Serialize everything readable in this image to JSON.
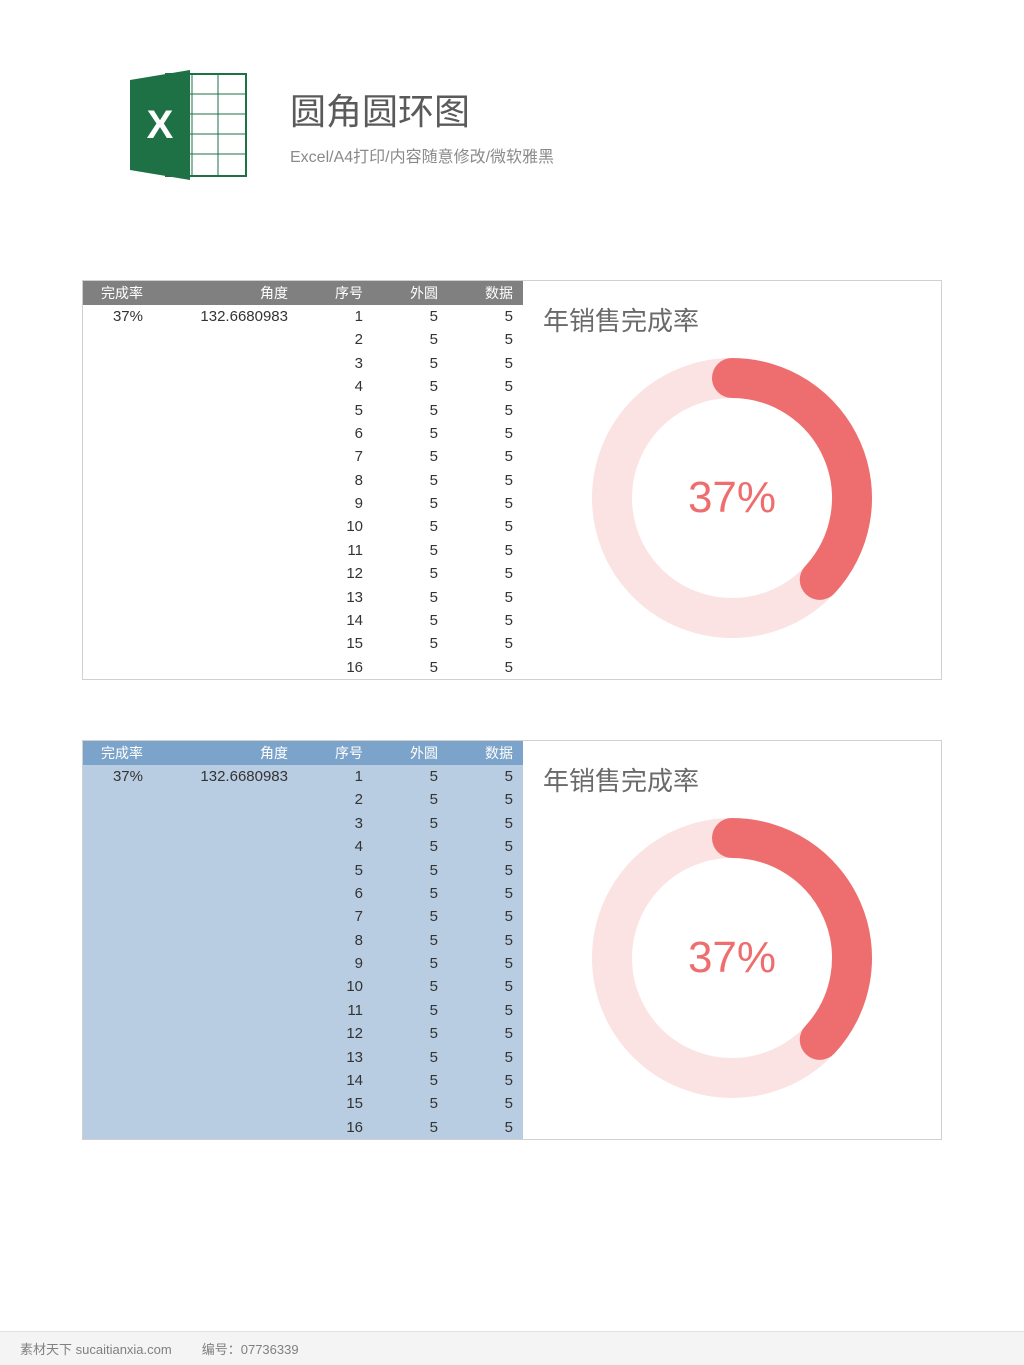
{
  "header": {
    "title": "圆角圆环图",
    "subtitle": "Excel/A4打印/内容随意修改/微软雅黑",
    "icon_bg": "#1e7145",
    "icon_page": "#ffffff",
    "icon_grid": "#1e7145"
  },
  "table": {
    "columns": [
      "完成率",
      "角度",
      "序号",
      "外圆",
      "数据"
    ],
    "first_row": {
      "完成率": "37%",
      "角度": "132.6680983",
      "序号": "1",
      "外圆": "5",
      "数据": "5"
    },
    "row_count": 16,
    "outer_value": "5",
    "data_value": "5",
    "header_bg_panel1": "#808080",
    "body_bg_panel1": "#ffffff",
    "header_bg_panel2": "#7ca3c9",
    "body_bg_panel2": "#b9cde2",
    "header_text_color": "#ffffff",
    "body_text_color": "#333333",
    "font_size": 15
  },
  "chart": {
    "type": "donut",
    "title": "年销售完成率",
    "title_color": "#6a6a6a",
    "title_fontsize": 26,
    "percent_value": 37,
    "percent_label": "37%",
    "percent_color": "#ee6e6f",
    "percent_fontsize": 44,
    "track_color": "#fbe3e4",
    "progress_color": "#ee6e6f",
    "background_color": "#ffffff",
    "outer_radius": 140,
    "inner_radius": 100,
    "stroke_width": 40,
    "start_angle_deg": -90,
    "sweep_angle_deg": 133,
    "rounded_caps": true
  },
  "panel2_overlay_bg": "#b9cde2",
  "footer": {
    "site_label": "素材天下  sucaitianxia.com",
    "id_label": "编号：",
    "id_value": "07736339"
  }
}
